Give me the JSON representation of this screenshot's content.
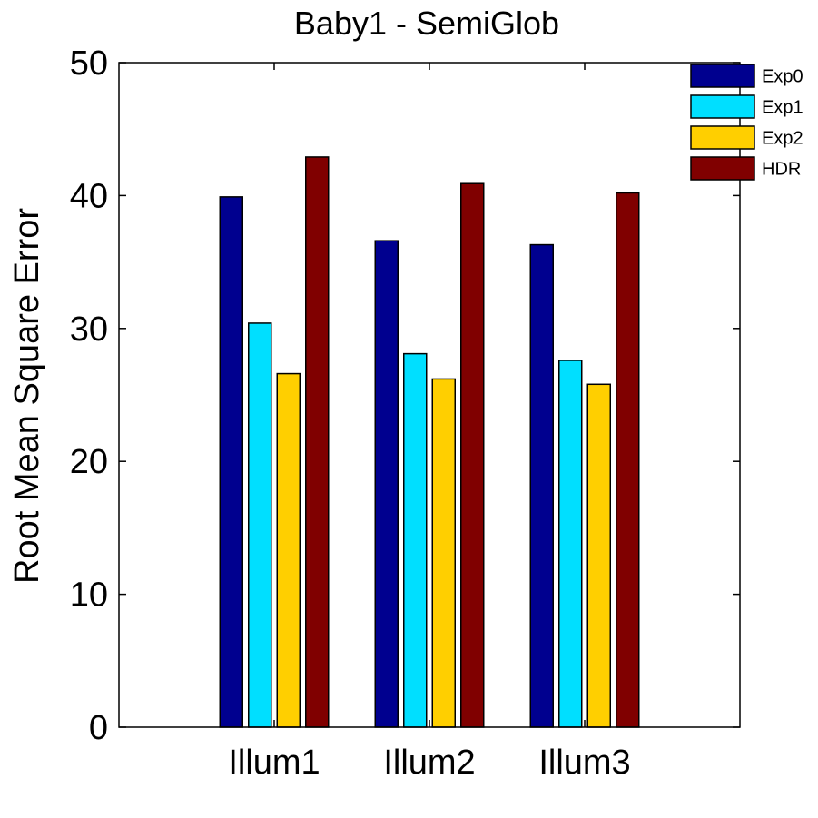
{
  "chart_data": {
    "type": "bar",
    "title": "Baby1 - SemiGlob",
    "xlabel": "",
    "ylabel": "Root Mean Square Error",
    "categories": [
      "Illum1",
      "Illum2",
      "Illum3"
    ],
    "yticks": [
      0,
      10,
      20,
      30,
      40,
      50
    ],
    "ylim": [
      0,
      50
    ],
    "grid": false,
    "legend_placement": "top-right",
    "series": [
      {
        "name": "Exp0",
        "color": "#00008F",
        "values": [
          39.9,
          36.6,
          36.3
        ]
      },
      {
        "name": "Exp1",
        "color": "#00DFFF",
        "values": [
          30.4,
          28.1,
          27.6
        ]
      },
      {
        "name": "Exp2",
        "color": "#FFCF00",
        "values": [
          26.6,
          26.2,
          25.8
        ]
      },
      {
        "name": "HDR",
        "color": "#800000",
        "values": [
          42.9,
          40.9,
          40.2
        ]
      }
    ]
  }
}
